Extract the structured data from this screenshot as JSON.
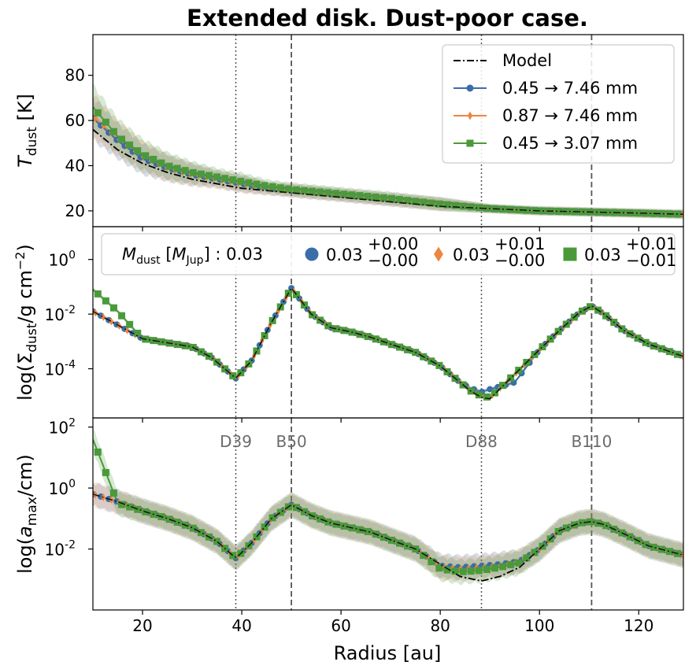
{
  "figure": {
    "title": "Extended disk. Dust-poor case.",
    "xlabel": "Radius [au]",
    "xlim": [
      10,
      129
    ],
    "xticks": [
      20,
      40,
      60,
      80,
      100,
      120
    ],
    "xtick_labels": [
      "20",
      "40",
      "60",
      "80",
      "100",
      "120"
    ],
    "features": [
      {
        "label": "D39",
        "r": 38.8,
        "style": "dotted"
      },
      {
        "label": "B50",
        "r": 50.0,
        "style": "dashed"
      },
      {
        "label": "D88",
        "r": 88.3,
        "style": "dotted"
      },
      {
        "label": "B110",
        "r": 110.5,
        "style": "dashed"
      }
    ]
  },
  "colors": {
    "model": "#000000",
    "blue": "#3a6ea8",
    "orange": "#ee8540",
    "green": "#4a9a3a",
    "feature_line": "#555555"
  },
  "legend_top": {
    "entries": [
      {
        "label": "Model",
        "marker": "none",
        "color": "#000000"
      },
      {
        "label": "0.45  →  7.46 mm",
        "marker": "circle",
        "color": "#3a6ea8"
      },
      {
        "label": "0.87  →  7.46 mm",
        "marker": "diamond",
        "color": "#ee8540"
      },
      {
        "label": "0.45  →  3.07 mm",
        "marker": "square",
        "color": "#4a9a3a"
      }
    ]
  },
  "legend_mid": {
    "label": "M_dust [M_Jup] : 0.03",
    "entries": [
      {
        "marker": "circle",
        "color": "#3a6ea8",
        "value": "0.03",
        "plus": "+0.00",
        "minus": "−0.00"
      },
      {
        "marker": "diamond",
        "color": "#ee8540",
        "value": "0.03",
        "plus": "+0.01",
        "minus": "−0.00"
      },
      {
        "marker": "square",
        "color": "#4a9a3a",
        "value": "0.03",
        "plus": "+0.01",
        "minus": "−0.01"
      }
    ]
  },
  "chart_data": [
    {
      "type": "line",
      "panel": "temperature",
      "ylabel": "T_dust [K]",
      "ylim": [
        13,
        98
      ],
      "yscale": "linear",
      "yticks": [
        20,
        40,
        60,
        80
      ],
      "ytick_labels": [
        "20",
        "40",
        "60",
        "80"
      ],
      "x": [
        10,
        15,
        20,
        25,
        30,
        35,
        40,
        45,
        50,
        55,
        60,
        70,
        80,
        90,
        100,
        110,
        120,
        129
      ],
      "series": [
        {
          "name": "Model",
          "values": [
            56,
            47,
            41,
            37,
            34,
            32,
            30,
            29,
            28,
            27,
            26,
            24,
            22,
            21,
            20,
            19.5,
            19,
            18.5
          ]
        },
        {
          "name": "0.45 → 7.46 mm",
          "values": [
            61,
            51,
            43,
            39,
            36,
            34,
            32,
            30,
            29,
            28,
            27,
            25,
            23,
            21,
            20,
            19.5,
            19,
            18.5
          ]
        },
        {
          "name": "0.87 → 7.46 mm",
          "values": [
            62,
            52,
            44,
            39,
            36,
            34,
            32,
            30,
            29,
            28,
            27,
            25,
            23,
            21,
            20,
            19.5,
            19,
            18.5
          ]
        },
        {
          "name": "0.45 → 3.07 mm",
          "values": [
            66,
            53,
            45,
            40,
            37,
            35,
            33,
            31,
            29.5,
            28.5,
            27.5,
            25.5,
            23,
            21,
            20,
            19.5,
            19,
            18.5
          ]
        }
      ],
      "band_halfwidth": [
        10,
        8,
        7,
        6,
        5,
        4,
        4,
        3,
        3,
        3,
        3,
        3,
        3,
        2,
        2,
        2,
        2,
        2
      ]
    },
    {
      "type": "line",
      "panel": "surface_density",
      "ylabel": "log(Σ_dust/g cm^-2)",
      "ylim": [
        -5.8,
        1.2
      ],
      "yscale": "log",
      "yticks": [
        0,
        -2,
        -4
      ],
      "ytick_labels": [
        "10^0",
        "10^-2",
        "10^-4"
      ],
      "x": [
        10,
        15,
        20,
        25,
        30,
        34,
        38.8,
        42,
        46,
        50,
        54,
        58,
        62,
        66,
        70,
        75,
        80,
        84,
        86,
        88.3,
        90,
        95,
        100,
        104,
        108,
        110.5,
        113,
        117,
        122,
        129
      ],
      "series": [
        {
          "name": "Model",
          "values": [
            -1.9,
            -2.4,
            -2.9,
            -3.05,
            -3.2,
            -3.6,
            -4.35,
            -3.7,
            -2.3,
            -1.05,
            -2.0,
            -2.5,
            -2.65,
            -2.85,
            -3.1,
            -3.4,
            -3.9,
            -4.5,
            -4.8,
            -5.05,
            -5.1,
            -4.2,
            -3.3,
            -2.6,
            -1.95,
            -1.7,
            -2.0,
            -2.6,
            -3.1,
            -3.55
          ]
        },
        {
          "name": "0.45 → 7.46 mm",
          "values": [
            -1.9,
            -2.4,
            -2.9,
            -3.05,
            -3.2,
            -3.6,
            -4.35,
            -3.7,
            -2.3,
            -1.05,
            -2.0,
            -2.5,
            -2.65,
            -2.85,
            -3.1,
            -3.4,
            -3.9,
            -4.5,
            -4.7,
            -4.85,
            -4.75,
            -4.5,
            -3.3,
            -2.6,
            -1.95,
            -1.7,
            -2.0,
            -2.6,
            -3.1,
            -3.55
          ]
        },
        {
          "name": "0.87 → 7.46 mm",
          "values": [
            -1.9,
            -2.4,
            -2.9,
            -3.05,
            -3.2,
            -3.6,
            -4.35,
            -3.7,
            -2.3,
            -1.05,
            -2.0,
            -2.5,
            -2.65,
            -2.85,
            -3.1,
            -3.4,
            -3.9,
            -4.5,
            -4.8,
            -5.0,
            -5.05,
            -4.2,
            -3.3,
            -2.6,
            -1.95,
            -1.7,
            -2.0,
            -2.6,
            -3.1,
            -3.55
          ]
        },
        {
          "name": "0.45 → 3.07 mm",
          "values": [
            -1.1,
            -1.9,
            -2.9,
            -3.05,
            -3.2,
            -3.6,
            -4.35,
            -3.7,
            -2.3,
            -1.05,
            -2.0,
            -2.5,
            -2.65,
            -2.85,
            -3.1,
            -3.4,
            -3.9,
            -4.5,
            -4.8,
            -5.0,
            -5.05,
            -4.2,
            -3.3,
            -2.6,
            -1.95,
            -1.7,
            -2.0,
            -2.6,
            -3.1,
            -3.55
          ]
        }
      ]
    },
    {
      "type": "line",
      "panel": "max_grain_size",
      "ylabel": "log(a_max/cm)",
      "ylim": [
        -4.0,
        2.3
      ],
      "yscale": "log",
      "yticks": [
        2,
        0,
        -2
      ],
      "ytick_labels": [
        "10^2",
        "10^0",
        "10^-2"
      ],
      "x": [
        10,
        15,
        20,
        25,
        30,
        35,
        38.8,
        42,
        46,
        50,
        54,
        58,
        62,
        66,
        70,
        75,
        80,
        84,
        88.3,
        92,
        96,
        100,
        104,
        108,
        110.5,
        113,
        117,
        122,
        129
      ],
      "series": [
        {
          "name": "Model",
          "values": [
            -0.2,
            -0.45,
            -0.75,
            -1.0,
            -1.3,
            -1.75,
            -2.3,
            -1.8,
            -1.0,
            -0.55,
            -0.9,
            -1.15,
            -1.3,
            -1.45,
            -1.7,
            -2.0,
            -2.5,
            -2.9,
            -3.05,
            -2.9,
            -2.6,
            -2.0,
            -1.4,
            -1.15,
            -1.1,
            -1.2,
            -1.5,
            -1.9,
            -2.2
          ]
        },
        {
          "name": "0.45 → 7.46 mm",
          "values": [
            -0.2,
            -0.45,
            -0.75,
            -1.0,
            -1.3,
            -1.75,
            -2.3,
            -1.8,
            -1.0,
            -0.55,
            -0.9,
            -1.15,
            -1.3,
            -1.45,
            -1.7,
            -2.0,
            -2.55,
            -2.6,
            -2.55,
            -2.5,
            -2.4,
            -2.0,
            -1.4,
            -1.15,
            -1.1,
            -1.2,
            -1.5,
            -1.9,
            -2.2
          ]
        },
        {
          "name": "0.87 → 7.46 mm",
          "values": [
            -0.2,
            -0.45,
            -0.75,
            -1.0,
            -1.3,
            -1.75,
            -2.3,
            -1.8,
            -1.0,
            -0.55,
            -0.9,
            -1.15,
            -1.3,
            -1.45,
            -1.7,
            -2.0,
            -2.6,
            -2.65,
            -2.6,
            -2.55,
            -2.4,
            -2.0,
            -1.4,
            -1.15,
            -1.1,
            -1.2,
            -1.5,
            -1.9,
            -2.2
          ]
        },
        {
          "name": "0.45 → 3.07 mm",
          "values": [
            1.6,
            -0.5,
            -0.75,
            -1.0,
            -1.3,
            -1.75,
            -2.3,
            -1.8,
            -1.0,
            -0.55,
            -0.9,
            -1.15,
            -1.3,
            -1.45,
            -1.7,
            -2.0,
            -2.65,
            -2.75,
            -2.7,
            -2.6,
            -2.45,
            -2.0,
            -1.4,
            -1.15,
            -1.1,
            -1.2,
            -1.5,
            -1.9,
            -2.2
          ]
        }
      ],
      "band_halfwidth": 0.4
    }
  ]
}
